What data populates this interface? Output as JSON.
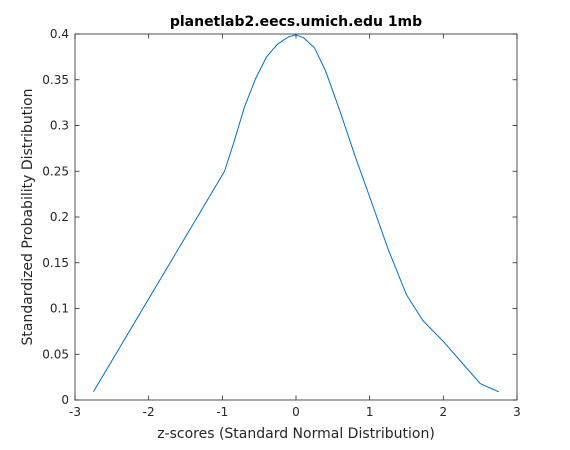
{
  "chart_data": {
    "type": "line",
    "title": "planetlab2.eecs.umich.edu 1mb",
    "xlabel": "z-scores (Standard Normal Distribution)",
    "ylabel": "Standardized Probability Distribution",
    "xlim": [
      -3,
      3
    ],
    "ylim": [
      0,
      0.4
    ],
    "xticks": [
      -3,
      -2,
      -1,
      0,
      1,
      2,
      3
    ],
    "xtick_labels": [
      "-3",
      "-2",
      "-1",
      "0",
      "1",
      "2",
      "3"
    ],
    "yticks": [
      0,
      0.05,
      0.1,
      0.15,
      0.2,
      0.25,
      0.3,
      0.35,
      0.4
    ],
    "ytick_labels": [
      "0",
      "0.05",
      "0.1",
      "0.15",
      "0.2",
      "0.25",
      "0.3",
      "0.35",
      "0.4"
    ],
    "grid": false,
    "box": true,
    "series": [
      {
        "color": "#0072bd",
        "x": [
          -2.75,
          -0.97,
          -0.85,
          -0.7,
          -0.55,
          -0.4,
          -0.25,
          -0.1,
          0.0,
          0.1,
          0.25,
          0.4,
          0.6,
          0.8,
          1.0,
          1.25,
          1.5,
          1.72,
          2.0,
          2.25,
          2.5,
          2.75
        ],
        "y": [
          0.009,
          0.25,
          0.28,
          0.32,
          0.351,
          0.375,
          0.389,
          0.397,
          0.399,
          0.396,
          0.385,
          0.36,
          0.315,
          0.267,
          0.222,
          0.165,
          0.115,
          0.087,
          0.064,
          0.041,
          0.018,
          0.009
        ]
      }
    ]
  }
}
